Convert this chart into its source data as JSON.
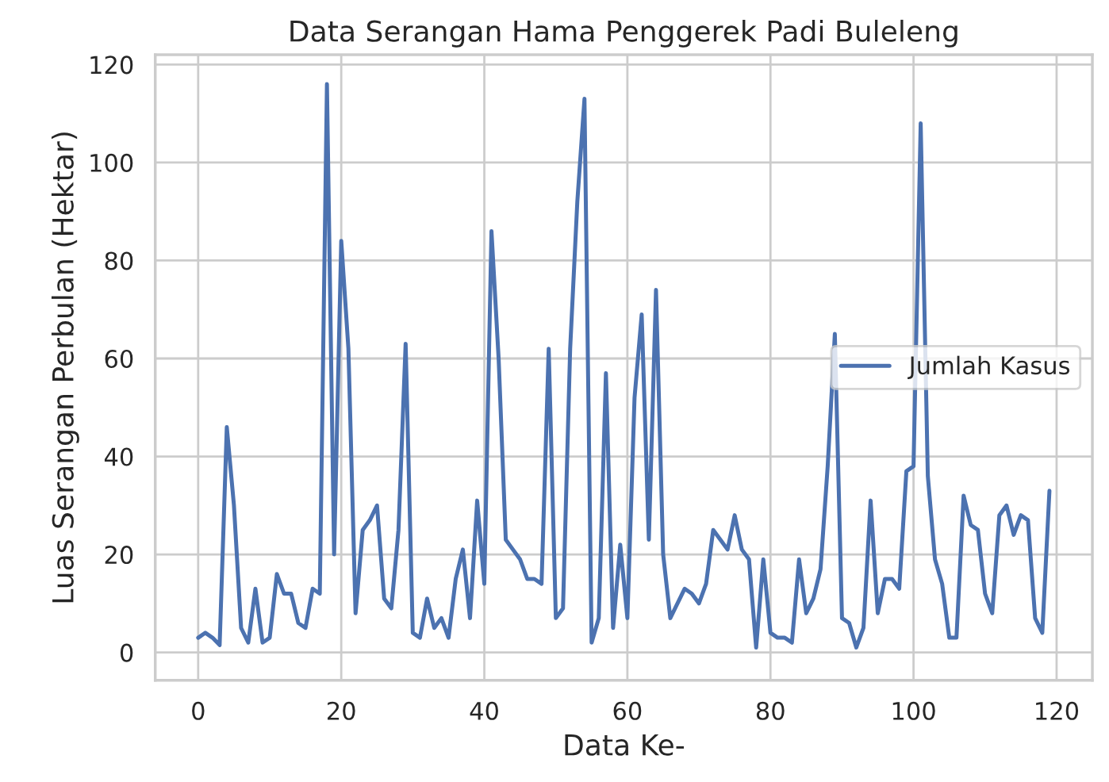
{
  "chart_data": {
    "type": "line",
    "title": "Data Serangan Hama Penggerek Padi Buleleng",
    "xlabel": "Data Ke-",
    "ylabel": "Luas Serangan Perbulan (Hektar)",
    "x": [
      0,
      1,
      2,
      3,
      4,
      5,
      6,
      7,
      8,
      9,
      10,
      11,
      12,
      13,
      14,
      15,
      16,
      17,
      18,
      19,
      20,
      21,
      22,
      23,
      24,
      25,
      26,
      27,
      28,
      29,
      30,
      31,
      32,
      33,
      34,
      35,
      36,
      37,
      38,
      39,
      40,
      41,
      42,
      43,
      44,
      45,
      46,
      47,
      48,
      49,
      50,
      51,
      52,
      53,
      54,
      55,
      56,
      57,
      58,
      59,
      60,
      61,
      62,
      63,
      64,
      65,
      66,
      67,
      68,
      69,
      70,
      71,
      72,
      73,
      74,
      75,
      76,
      77,
      78,
      79,
      80,
      81,
      82,
      83,
      84,
      85,
      86,
      87,
      88,
      89,
      90,
      91,
      92,
      93,
      94,
      95,
      96,
      97,
      98,
      99,
      100,
      101,
      102,
      103,
      104,
      105,
      106,
      107,
      108,
      109,
      110,
      111,
      112,
      113,
      114,
      115,
      116,
      117,
      118,
      119
    ],
    "series": [
      {
        "name": "Jumlah Kasus",
        "color": "#4c72b0",
        "values": [
          3,
          4,
          3,
          1.5,
          46,
          30,
          5,
          2,
          13,
          2,
          3,
          16,
          12,
          12,
          6,
          5,
          13,
          12,
          116,
          20,
          84,
          62,
          8,
          25,
          27,
          30,
          11,
          9,
          25,
          63,
          4,
          3,
          11,
          5,
          7,
          3,
          15,
          21,
          7,
          31,
          14,
          86,
          60,
          23,
          21,
          19,
          15,
          15,
          14,
          62,
          7,
          9,
          62,
          92,
          113,
          2,
          7,
          57,
          5,
          22,
          7,
          52,
          69,
          23,
          74,
          20,
          7,
          10,
          13,
          12,
          10,
          14,
          25,
          23,
          21,
          28,
          21,
          19,
          1,
          19,
          4,
          3,
          3,
          2,
          19,
          8,
          11,
          17,
          38,
          65,
          7,
          6,
          1,
          5,
          31,
          8,
          15,
          15,
          13,
          37,
          38,
          108,
          36,
          19,
          14,
          3,
          3,
          32,
          26,
          25,
          12,
          8,
          28,
          30,
          24,
          28,
          27,
          7,
          4,
          33
        ]
      }
    ],
    "xlim": [
      -6,
      125
    ],
    "ylim": [
      -5.7,
      122
    ],
    "xticks": [
      0,
      20,
      40,
      60,
      80,
      100,
      120
    ],
    "yticks": [
      0,
      20,
      40,
      60,
      80,
      100,
      120
    ],
    "grid": true,
    "legend": "center right",
    "line_style": "solid",
    "marker": "none"
  }
}
